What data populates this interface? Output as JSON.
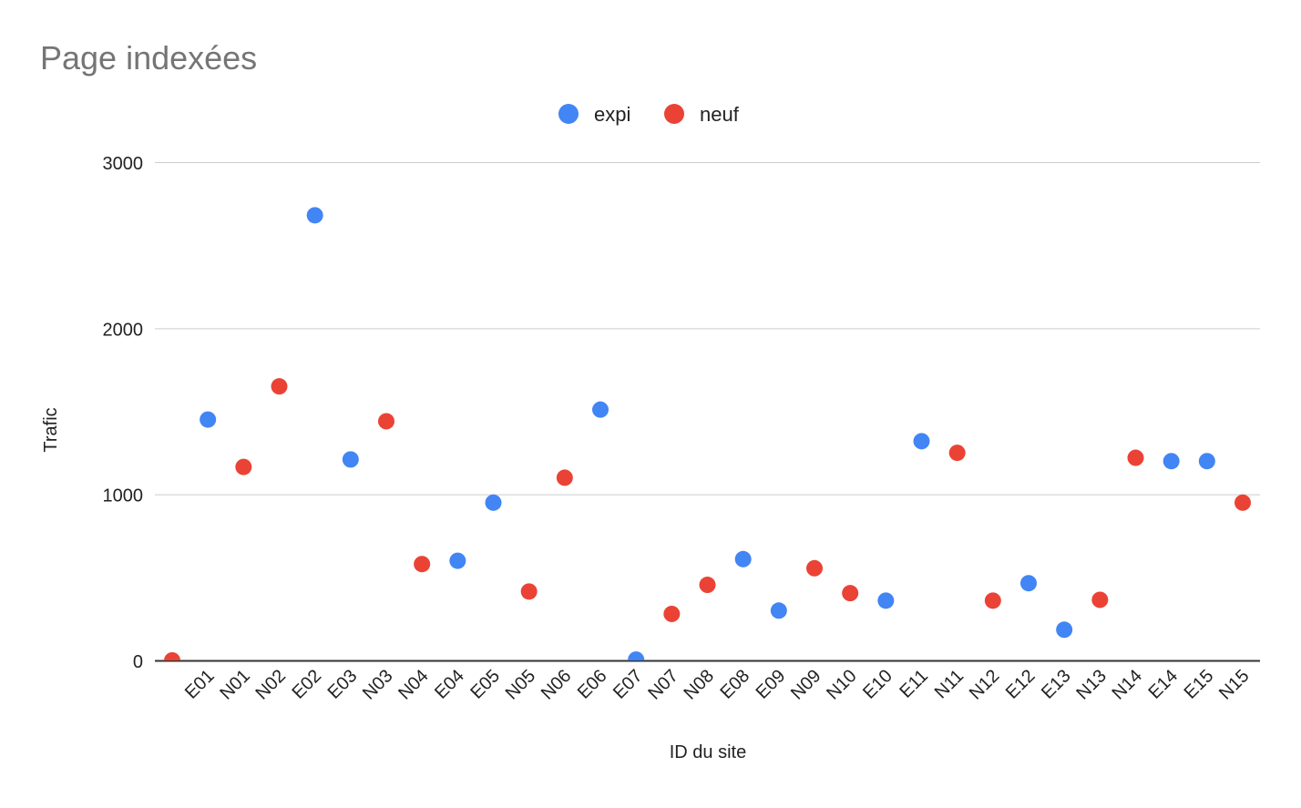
{
  "chart_data": {
    "type": "scatter",
    "title": "Page indexées",
    "xlabel": "ID du site",
    "ylabel": "Trafic",
    "ylim": [
      0,
      3000
    ],
    "yticks": [
      0,
      1000,
      2000,
      3000
    ],
    "grid": true,
    "legend_position": "top-center",
    "categories": [
      "",
      "E01",
      "N01",
      "N02",
      "E02",
      "E03",
      "N03",
      "N04",
      "E04",
      "E05",
      "N05",
      "N06",
      "E06",
      "E07",
      "N07",
      "N08",
      "E08",
      "E09",
      "N09",
      "N10",
      "E10",
      "E11",
      "N11",
      "N12",
      "E12",
      "E13",
      "N13",
      "N14",
      "E14",
      "E15",
      "N15"
    ],
    "series": [
      {
        "name": "expi",
        "color": "#4285f4",
        "values": [
          null,
          1450,
          null,
          null,
          2680,
          1210,
          null,
          null,
          600,
          950,
          null,
          null,
          1510,
          5,
          null,
          null,
          610,
          300,
          null,
          null,
          360,
          1320,
          null,
          null,
          465,
          185,
          null,
          null,
          1200,
          1200,
          null
        ]
      },
      {
        "name": "neuf",
        "color": "#ea4335",
        "values": [
          0,
          null,
          1165,
          1650,
          null,
          null,
          1440,
          580,
          null,
          null,
          415,
          1100,
          null,
          null,
          280,
          455,
          null,
          null,
          555,
          405,
          null,
          null,
          1250,
          360,
          null,
          null,
          365,
          1220,
          null,
          null,
          950
        ]
      }
    ]
  }
}
